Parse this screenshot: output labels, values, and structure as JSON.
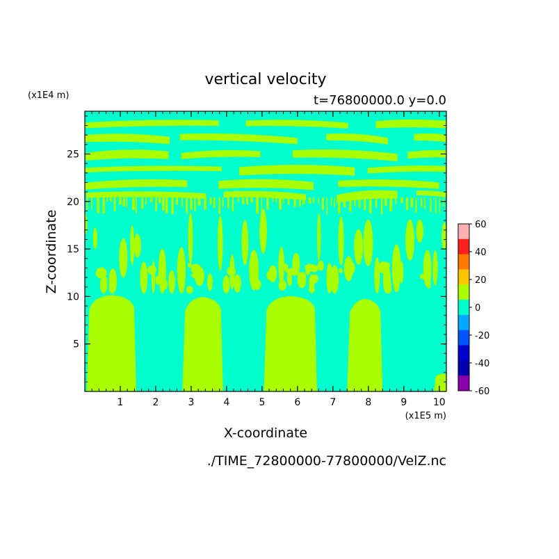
{
  "chart_data": {
    "type": "heatmap",
    "title": "vertical velocity",
    "subtitle": "t=76800000.0 y=0.0",
    "xlabel": "X-coordinate",
    "ylabel": "Z-coordinate",
    "x_unit": "(x1E5 m)",
    "y_unit": "(x1E4 m)",
    "footer": "./TIME_72800000-77800000/VelZ.nc",
    "xlim": [
      0,
      10.2
    ],
    "ylim": [
      0,
      29.5
    ],
    "x_ticks": [
      "1",
      "2",
      "3",
      "4",
      "5",
      "6",
      "7",
      "8",
      "9",
      "10"
    ],
    "y_ticks": [
      "5",
      "10",
      "15",
      "20",
      "25"
    ],
    "colorbar": {
      "levels": [
        "60",
        "40",
        "20",
        "0",
        "-20",
        "-40",
        "-60"
      ],
      "colors": [
        "#ffb0b0",
        "#ff2020",
        "#ff7a00",
        "#ffc400",
        "#aaff00",
        "#00ffcc",
        "#00aaff",
        "#0055ff",
        "#0000cc",
        "#0000aa",
        "#8800aa"
      ]
    },
    "background_color": "#00ffcc",
    "positive_color": "#aaff00",
    "lower_columns": [
      {
        "x0": 0.05,
        "x1": 1.45,
        "top": 10.0
      },
      {
        "x0": 2.75,
        "x1": 3.9,
        "top": 9.8
      },
      {
        "x0": 5.05,
        "x1": 6.55,
        "top": 9.9
      },
      {
        "x0": 7.4,
        "x1": 8.4,
        "top": 9.6
      }
    ]
  }
}
